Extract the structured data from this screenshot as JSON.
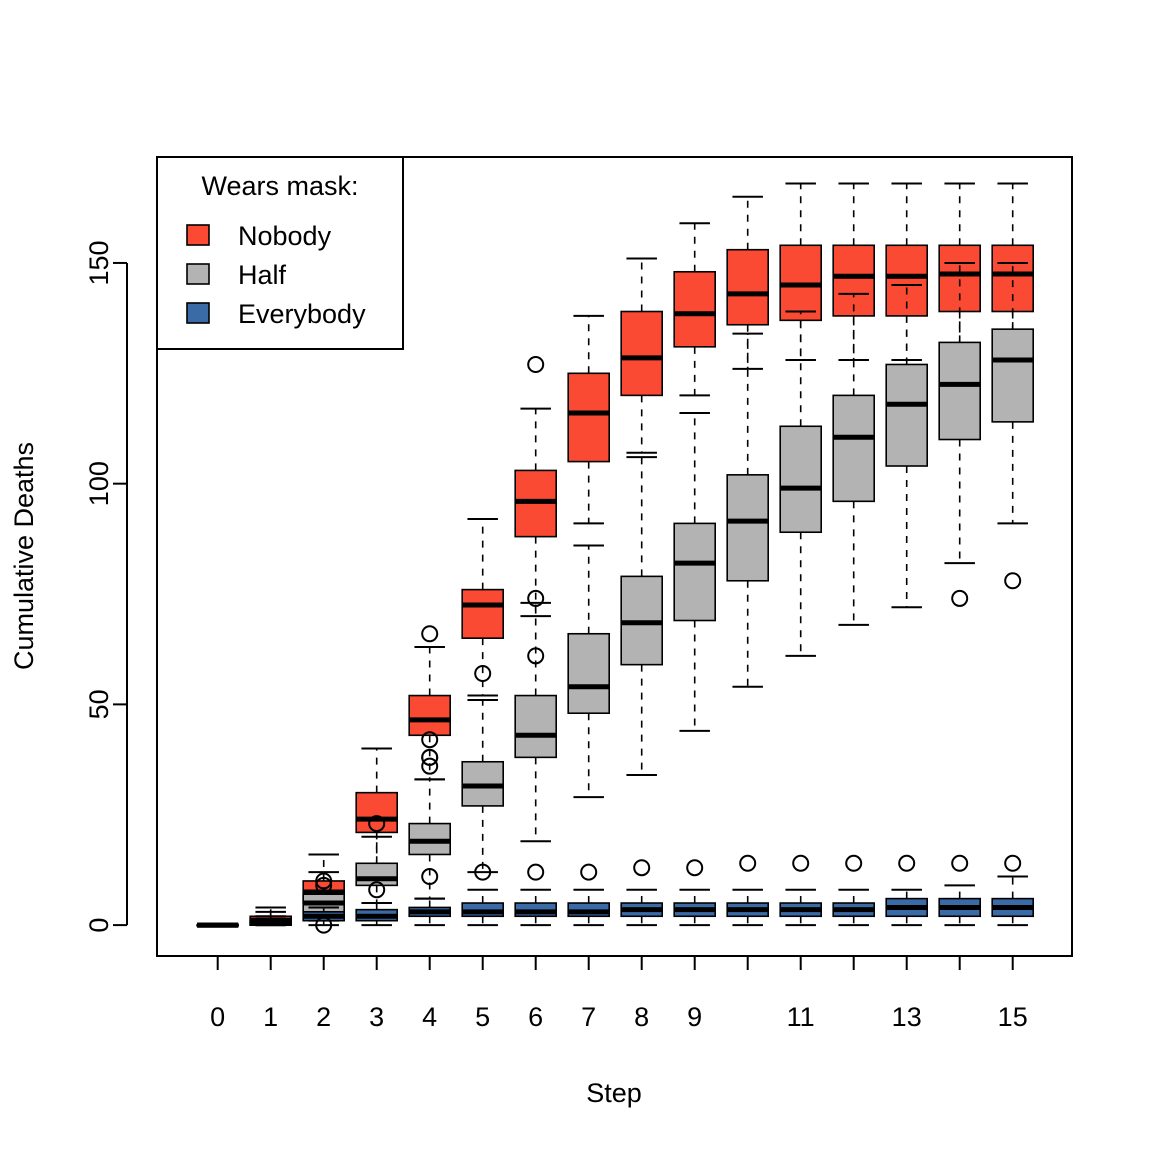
{
  "chart_data": {
    "type": "boxplot",
    "title": "",
    "xlabel": "Step",
    "ylabel": "Cumulative Deaths",
    "ylim": [
      -7,
      174
    ],
    "yticks": [
      0,
      50,
      100,
      150
    ],
    "steps": [
      0,
      1,
      2,
      3,
      4,
      5,
      6,
      7,
      8,
      9,
      10,
      11,
      12,
      13,
      14,
      15
    ],
    "xtick_labels": [
      "0",
      "1",
      "2",
      "3",
      "4",
      "5",
      "6",
      "7",
      "8",
      "9",
      "",
      "11",
      "",
      "13",
      "",
      "15"
    ],
    "legend": {
      "title": "Wears mask:",
      "position": "top-left",
      "entries": [
        "Nobody",
        "Half",
        "Everybody"
      ]
    },
    "series": [
      {
        "name": "Nobody",
        "color": "#fb4a33",
        "boxes": [
          {
            "step": 0,
            "lw": 0,
            "q1": 0,
            "med": 0,
            "q3": 0,
            "uw": 0,
            "out": []
          },
          {
            "step": 1,
            "lw": 0,
            "q1": 0,
            "med": 1,
            "q3": 2,
            "uw": 4,
            "out": []
          },
          {
            "step": 2,
            "lw": 2,
            "q1": 5,
            "med": 7.5,
            "q3": 10,
            "uw": 16,
            "out": []
          },
          {
            "step": 3,
            "lw": 10,
            "q1": 21,
            "med": 24,
            "q3": 30,
            "uw": 40,
            "out": []
          },
          {
            "step": 4,
            "lw": 33,
            "q1": 43,
            "med": 46.5,
            "q3": 52,
            "uw": 63,
            "out": [
              36,
              38,
              42,
              66
            ]
          },
          {
            "step": 5,
            "lw": 52,
            "q1": 65,
            "med": 72.5,
            "q3": 76,
            "uw": 92,
            "out": [
              57
            ]
          },
          {
            "step": 6,
            "lw": 70,
            "q1": 88,
            "med": 96,
            "q3": 103,
            "uw": 117,
            "out": [
              74,
              127
            ]
          },
          {
            "step": 7,
            "lw": 91,
            "q1": 105,
            "med": 116,
            "q3": 125,
            "uw": 138,
            "out": []
          },
          {
            "step": 8,
            "lw": 107,
            "q1": 120,
            "med": 128.5,
            "q3": 139,
            "uw": 151,
            "out": []
          },
          {
            "step": 9,
            "lw": 120,
            "q1": 131,
            "med": 138.5,
            "q3": 148,
            "uw": 159,
            "out": []
          },
          {
            "step": 10,
            "lw": 126,
            "q1": 136,
            "med": 143,
            "q3": 153,
            "uw": 165,
            "out": []
          },
          {
            "step": 11,
            "lw": 128,
            "q1": 137,
            "med": 145,
            "q3": 154,
            "uw": 168,
            "out": []
          },
          {
            "step": 12,
            "lw": 128,
            "q1": 138,
            "med": 147,
            "q3": 154,
            "uw": 168,
            "out": []
          },
          {
            "step": 13,
            "lw": 128,
            "q1": 138,
            "med": 147,
            "q3": 154,
            "uw": 168,
            "out": []
          },
          {
            "step": 14,
            "lw": 128,
            "q1": 139,
            "med": 147.5,
            "q3": 154,
            "uw": 168,
            "out": []
          },
          {
            "step": 15,
            "lw": 128,
            "q1": 139,
            "med": 147.5,
            "q3": 154,
            "uw": 168,
            "out": []
          }
        ]
      },
      {
        "name": "Half",
        "color": "#b3b3b3",
        "boxes": [
          {
            "step": 0,
            "lw": 0,
            "q1": 0,
            "med": 0,
            "q3": 0,
            "uw": 0,
            "out": []
          },
          {
            "step": 1,
            "lw": 0,
            "q1": 0,
            "med": 1,
            "q3": 1.5,
            "uw": 3,
            "out": []
          },
          {
            "step": 2,
            "lw": 1,
            "q1": 3,
            "med": 5,
            "q3": 7,
            "uw": 12,
            "out": [
              9,
              10
            ]
          },
          {
            "step": 3,
            "lw": 3,
            "q1": 9,
            "med": 10.5,
            "q3": 14,
            "uw": 20,
            "out": [
              23
            ]
          },
          {
            "step": 4,
            "lw": 6,
            "q1": 16,
            "med": 19,
            "q3": 23,
            "uw": 33,
            "out": [
              11,
              38
            ]
          },
          {
            "step": 5,
            "lw": 12,
            "q1": 27,
            "med": 31.5,
            "q3": 37,
            "uw": 51,
            "out": []
          },
          {
            "step": 6,
            "lw": 19,
            "q1": 38,
            "med": 43,
            "q3": 52,
            "uw": 73,
            "out": [
              61
            ]
          },
          {
            "step": 7,
            "lw": 29,
            "q1": 48,
            "med": 54,
            "q3": 66,
            "uw": 86,
            "out": []
          },
          {
            "step": 8,
            "lw": 34,
            "q1": 59,
            "med": 68.5,
            "q3": 79,
            "uw": 106,
            "out": []
          },
          {
            "step": 9,
            "lw": 44,
            "q1": 69,
            "med": 82,
            "q3": 91,
            "uw": 116,
            "out": []
          },
          {
            "step": 10,
            "lw": 54,
            "q1": 78,
            "med": 91.5,
            "q3": 102,
            "uw": 134,
            "out": []
          },
          {
            "step": 11,
            "lw": 61,
            "q1": 89,
            "med": 99,
            "q3": 113,
            "uw": 139,
            "out": []
          },
          {
            "step": 12,
            "lw": 68,
            "q1": 96,
            "med": 110.5,
            "q3": 120,
            "uw": 143,
            "out": []
          },
          {
            "step": 13,
            "lw": 72,
            "q1": 104,
            "med": 118,
            "q3": 127,
            "uw": 145,
            "out": []
          },
          {
            "step": 14,
            "lw": 82,
            "q1": 110,
            "med": 122.5,
            "q3": 132,
            "uw": 150,
            "out": [
              74
            ]
          },
          {
            "step": 15,
            "lw": 91,
            "q1": 114,
            "med": 128,
            "q3": 135,
            "uw": 150,
            "out": [
              78
            ]
          }
        ]
      },
      {
        "name": "Everybody",
        "color": "#3a6ba6",
        "boxes": [
          {
            "step": 0,
            "lw": 0,
            "q1": 0,
            "med": 0,
            "q3": 0,
            "uw": 0,
            "out": []
          },
          {
            "step": 1,
            "lw": 0,
            "q1": 0,
            "med": 0.5,
            "q3": 1,
            "uw": 2,
            "out": []
          },
          {
            "step": 2,
            "lw": 0,
            "q1": 1,
            "med": 2,
            "q3": 3,
            "uw": 4,
            "out": [
              0
            ]
          },
          {
            "step": 3,
            "lw": 0,
            "q1": 1,
            "med": 2,
            "q3": 3.5,
            "uw": 5,
            "out": [
              8
            ]
          },
          {
            "step": 4,
            "lw": 0,
            "q1": 2,
            "med": 3,
            "q3": 4,
            "uw": 6,
            "out": []
          },
          {
            "step": 5,
            "lw": 0,
            "q1": 2,
            "med": 3,
            "q3": 5,
            "uw": 8,
            "out": [
              12
            ]
          },
          {
            "step": 6,
            "lw": 0,
            "q1": 2,
            "med": 3,
            "q3": 5,
            "uw": 8,
            "out": [
              12
            ]
          },
          {
            "step": 7,
            "lw": 0,
            "q1": 2,
            "med": 3,
            "q3": 5,
            "uw": 8,
            "out": [
              12
            ]
          },
          {
            "step": 8,
            "lw": 0,
            "q1": 2,
            "med": 3.5,
            "q3": 5,
            "uw": 8,
            "out": [
              13
            ]
          },
          {
            "step": 9,
            "lw": 0,
            "q1": 2,
            "med": 3.5,
            "q3": 5,
            "uw": 8,
            "out": [
              13
            ]
          },
          {
            "step": 10,
            "lw": 0,
            "q1": 2,
            "med": 3.5,
            "q3": 5,
            "uw": 8,
            "out": [
              14
            ]
          },
          {
            "step": 11,
            "lw": 0,
            "q1": 2,
            "med": 3.5,
            "q3": 5,
            "uw": 8,
            "out": [
              14
            ]
          },
          {
            "step": 12,
            "lw": 0,
            "q1": 2,
            "med": 3.5,
            "q3": 5,
            "uw": 8,
            "out": [
              14
            ]
          },
          {
            "step": 13,
            "lw": 0,
            "q1": 2,
            "med": 4,
            "q3": 6,
            "uw": 8,
            "out": [
              14
            ]
          },
          {
            "step": 14,
            "lw": 0,
            "q1": 2,
            "med": 4,
            "q3": 6,
            "uw": 9,
            "out": [
              14
            ]
          },
          {
            "step": 15,
            "lw": 0,
            "q1": 2,
            "med": 4,
            "q3": 6,
            "uw": 11,
            "out": [
              14
            ]
          }
        ]
      }
    ]
  }
}
